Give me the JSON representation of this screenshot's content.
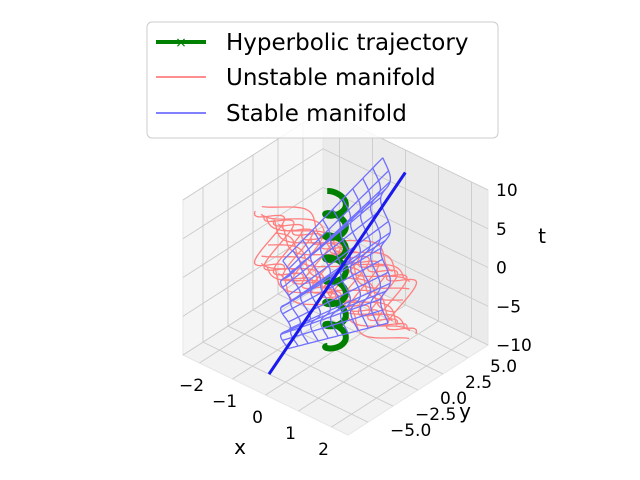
{
  "chart_data": {
    "type": "line",
    "projection": "3d",
    "grid": true,
    "legend_placement": "top-center",
    "axes": {
      "x": {
        "label": "x",
        "ticks": [
          -2,
          -1,
          0,
          1,
          2
        ],
        "tick_labels": [
          "−2",
          "−1",
          "0",
          "1",
          "2"
        ],
        "lim": [
          -2.5,
          2.5
        ]
      },
      "y": {
        "label": "y",
        "ticks": [
          -5.0,
          -2.5,
          0.0,
          2.5,
          5.0
        ],
        "tick_labels": [
          "−5.0",
          "−2.5",
          "0.0",
          "2.5",
          "5.0"
        ],
        "lim": [
          -7,
          7
        ]
      },
      "t": {
        "label": "t",
        "ticks": [
          -10,
          -5,
          0,
          5,
          10
        ],
        "tick_labels": [
          "−10",
          "−5",
          "0",
          "5",
          "10"
        ],
        "lim": [
          -10,
          10
        ]
      }
    },
    "series": [
      {
        "name": "Hyperbolic trajectory",
        "kind": "line",
        "color": "#008000",
        "marker": "x",
        "description_values": {
          "t_range": [
            -10,
            10
          ],
          "amplitude": 0.25,
          "x_of_t": "0.25*cos(2.2*t)",
          "y_of_t": "0.25*sin(2.2*t)"
        }
      },
      {
        "name": "Unstable manifold",
        "kind": "wireframe",
        "color": "#ff7f7f",
        "description_values": {
          "x_range": [
            -2,
            2
          ],
          "t_range": [
            -5,
            5
          ],
          "y_of_x_t": "0.15*sin(t)"
        }
      },
      {
        "name": "Stable manifold",
        "kind": "wireframe",
        "color": "#6f6fff",
        "description_values": {
          "y_range": [
            -5,
            5
          ],
          "t_range": [
            -10,
            10
          ],
          "x_of_y_t": "0.15*sin(t)"
        }
      }
    ]
  }
}
